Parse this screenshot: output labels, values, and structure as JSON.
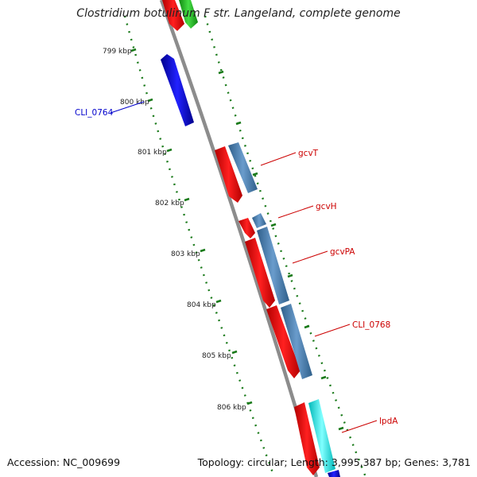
{
  "title": "Clostridium botulinum F str. Langeland, complete genome",
  "footer": {
    "accession": "Accession: NC_009699",
    "summary": "Topology: circular; Length: 3,995,387 bp; Genes: 3,781"
  },
  "colors": {
    "backbone": "#8c8c8c",
    "tick": "#1a7a1a",
    "gene_red": "#ff0000",
    "gene_blue": "#0000ff",
    "gene_green": "#22bb22",
    "gene_steel": "#4f86b8",
    "gene_cyan": "#00ffff",
    "label_red": "#cc0000",
    "label_blue": "#0000cc"
  },
  "ticks": [
    {
      "label": "799 kbp"
    },
    {
      "label": "800 kbp"
    },
    {
      "label": "801 kbp"
    },
    {
      "label": "802 kbp"
    },
    {
      "label": "803 kbp"
    },
    {
      "label": "804 kbp"
    },
    {
      "label": "805 kbp"
    },
    {
      "label": "806 kbp"
    }
  ],
  "gene_labels": [
    {
      "text": "CLI_0764",
      "color": "blue"
    },
    {
      "text": "gcvT",
      "color": "red"
    },
    {
      "text": "gcvH",
      "color": "red"
    },
    {
      "text": "gcvPA",
      "color": "red"
    },
    {
      "text": "CLI_0768",
      "color": "red"
    },
    {
      "text": "lpdA",
      "color": "red"
    }
  ]
}
